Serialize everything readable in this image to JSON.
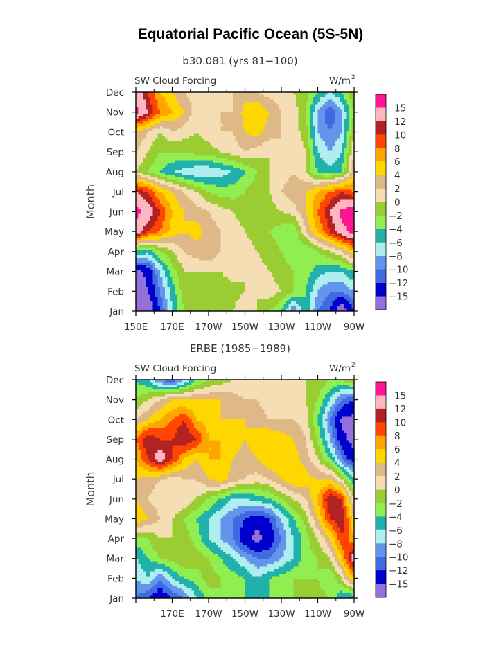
{
  "title": "Equatorial Pacific Ocean (5S-5N)",
  "colors": {
    "levels": [
      "#9370DB",
      "#0000CD",
      "#4169E1",
      "#6495ED",
      "#AFEEEE",
      "#20B2AA",
      "#90EE50",
      "#9ACD32",
      "#F5DEB3",
      "#DEB887",
      "#FFD700",
      "#FFA500",
      "#FF4500",
      "#B22222",
      "#FFB6C1",
      "#FF1493"
    ],
    "axis": "#000000"
  },
  "chart_data": [
    {
      "type": "contour",
      "title": "b30.081 (yrs 81−100)",
      "left_label": "SW Cloud Forcing",
      "units_label": "W/m",
      "units_sup": "2",
      "ylabel": "Month",
      "xlabel": "",
      "x_ticks": [
        "150E",
        "170E",
        "170W",
        "150W",
        "130W",
        "110W",
        "90W"
      ],
      "y_ticks": [
        "Jan",
        "Feb",
        "Mar",
        "Apr",
        "May",
        "Jun",
        "Jul",
        "Aug",
        "Sep",
        "Oct",
        "Nov",
        "Dec"
      ],
      "xlim": [
        150,
        270
      ],
      "ylim": [
        1,
        12
      ],
      "levels": [
        -15,
        -12,
        -10,
        -8,
        -6,
        -4,
        -2,
        0,
        2,
        4,
        6,
        8,
        10,
        12,
        15
      ],
      "colorbar_labels": [
        "15",
        "12",
        "10",
        "8",
        "6",
        "4",
        "2",
        "0",
        "−2",
        "−4",
        "−6",
        "−8",
        "−10",
        "−12",
        "−15"
      ],
      "grid": [
        [
          -20,
          -18,
          -12,
          -6,
          -2,
          -2,
          -2,
          0,
          0,
          2,
          0,
          -2,
          -4,
          -10,
          -4,
          -10,
          -12,
          -18,
          -12
        ],
        [
          -18,
          -15,
          -10,
          -5,
          -1,
          0,
          -2,
          -1,
          -1,
          0,
          0,
          1,
          0,
          -2,
          -4,
          -8,
          -10,
          -10,
          -8
        ],
        [
          -16,
          -14,
          -8,
          -3,
          0,
          0,
          0,
          0,
          1,
          0,
          1,
          0,
          -1,
          -2,
          -3,
          -5,
          -6,
          -6,
          -4
        ],
        [
          -4,
          -5,
          -2,
          0,
          2,
          3,
          4,
          2,
          1,
          1,
          0,
          -1,
          -2,
          -3,
          -4,
          -2,
          0,
          2,
          6
        ],
        [
          14,
          10,
          8,
          5,
          4,
          5,
          3,
          2,
          1,
          0,
          -1,
          -2,
          -3,
          -4,
          2,
          6,
          10,
          14,
          16
        ],
        [
          16,
          14,
          10,
          6,
          4,
          3,
          2,
          1,
          0,
          -1,
          -2,
          -1,
          0,
          1,
          4,
          8,
          12,
          16,
          17
        ],
        [
          12,
          10,
          6,
          4,
          2,
          0,
          -2,
          -3,
          -3,
          -2,
          -1,
          0,
          2,
          3,
          4,
          6,
          8,
          10,
          8
        ],
        [
          0,
          -2,
          -4,
          -6,
          -7,
          -8,
          -8,
          -7,
          -6,
          -4,
          -2,
          0,
          1,
          2,
          0,
          -4,
          -5,
          -4,
          4
        ],
        [
          2,
          0,
          -2,
          -2,
          -2,
          -1,
          -1,
          0,
          1,
          2,
          1,
          0,
          2,
          2,
          0,
          -6,
          -8,
          -6,
          2
        ],
        [
          4,
          2,
          0,
          2,
          1,
          0,
          1,
          2,
          2,
          4,
          5,
          3,
          2,
          1,
          -1,
          -8,
          -10,
          -8,
          0
        ],
        [
          16,
          12,
          8,
          6,
          4,
          1,
          0,
          2,
          2,
          5,
          6,
          4,
          2,
          1,
          -2,
          -8,
          -12,
          -8,
          -2
        ],
        [
          14,
          10,
          6,
          4,
          2,
          1,
          0,
          1,
          2,
          3,
          2,
          1,
          1,
          0,
          -1,
          -4,
          -6,
          -4,
          0
        ]
      ]
    },
    {
      "type": "contour",
      "title": "ERBE (1985−1989)",
      "left_label": "SW Cloud Forcing",
      "units_label": "W/m",
      "units_sup": "2",
      "ylabel": "Month",
      "xlabel": "",
      "x_ticks": [
        "",
        "170E",
        "170W",
        "150W",
        "130W",
        "110W",
        "90W"
      ],
      "y_ticks": [
        "Jan",
        "Feb",
        "Mar",
        "Apr",
        "May",
        "Jun",
        "Jul",
        "Aug",
        "Sep",
        "Oct",
        "Nov",
        "Dec"
      ],
      "xlim": [
        150,
        270
      ],
      "ylim": [
        1,
        12
      ],
      "levels": [
        -15,
        -12,
        -10,
        -8,
        -6,
        -4,
        -2,
        0,
        2,
        4,
        6,
        8,
        10,
        12,
        15
      ],
      "colorbar_labels": [
        "15",
        "12",
        "10",
        "8",
        "6",
        "4",
        "2",
        "0",
        "−2",
        "−4",
        "−6",
        "−8",
        "−10",
        "−12",
        "−15"
      ],
      "grid": [
        [
          -10,
          -12,
          -14,
          -12,
          -10,
          -6,
          -3,
          -2,
          -3,
          -4,
          -5,
          -4,
          -3,
          -2,
          -2,
          -1,
          -2,
          -6,
          -6
        ],
        [
          -8,
          -6,
          -10,
          -6,
          -4,
          -3,
          -1,
          -2,
          -3,
          -4,
          -6,
          -4,
          -3,
          -2,
          -2,
          -2,
          -4,
          0,
          6
        ],
        [
          -6,
          -4,
          -2,
          -1,
          0,
          -1,
          -2,
          -4,
          -6,
          -8,
          -10,
          -10,
          -8,
          -6,
          -3,
          -2,
          0,
          6,
          14
        ],
        [
          -3,
          -2,
          0,
          0,
          -1,
          -3,
          -6,
          -8,
          -10,
          -14,
          -16,
          -14,
          -10,
          -6,
          -3,
          0,
          4,
          10,
          6
        ],
        [
          6,
          4,
          2,
          0,
          -2,
          -4,
          -6,
          -8,
          -10,
          -12,
          -14,
          -12,
          -8,
          -4,
          -1,
          4,
          10,
          12,
          4
        ],
        [
          4,
          2,
          1,
          2,
          2,
          0,
          -2,
          -4,
          -6,
          -6,
          -5,
          -4,
          -2,
          0,
          2,
          6,
          12,
          10,
          0
        ],
        [
          4,
          3,
          2,
          1,
          2,
          2,
          4,
          5,
          3,
          2,
          1,
          2,
          4,
          6,
          5,
          4,
          4,
          0,
          -6
        ],
        [
          6,
          10,
          14,
          10,
          6,
          4,
          6,
          6,
          4,
          3,
          4,
          6,
          6,
          5,
          3,
          0,
          -4,
          -10,
          -14
        ],
        [
          8,
          12,
          10,
          10,
          12,
          10,
          6,
          6,
          5,
          4,
          5,
          6,
          5,
          4,
          2,
          -2,
          -8,
          -14,
          -16
        ],
        [
          2,
          4,
          6,
          8,
          10,
          6,
          5,
          4,
          4,
          4,
          3,
          2,
          2,
          2,
          1,
          -4,
          -10,
          -16,
          -16
        ],
        [
          -2,
          0,
          2,
          4,
          4,
          4,
          4,
          4,
          3,
          2,
          2,
          1,
          1,
          1,
          0,
          -2,
          -6,
          -10,
          -12
        ],
        [
          -4,
          -6,
          -10,
          -12,
          -8,
          -4,
          -2,
          -1,
          0,
          0,
          0,
          0,
          0,
          0,
          0,
          0,
          -2,
          -2,
          0
        ]
      ]
    }
  ]
}
